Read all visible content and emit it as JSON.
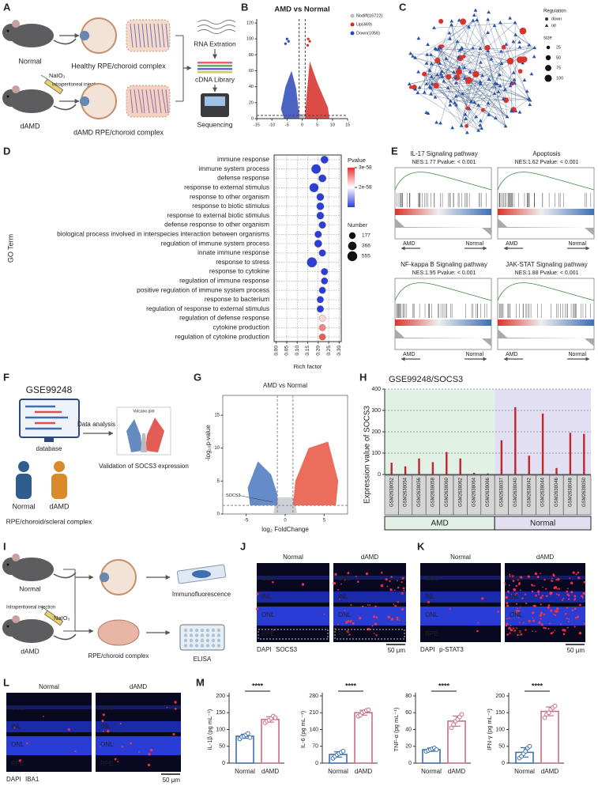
{
  "panel_labels": [
    "A",
    "B",
    "C",
    "D",
    "E",
    "F",
    "G",
    "H",
    "I",
    "J",
    "K",
    "L",
    "M"
  ],
  "panel_a": {
    "normal": "Normal",
    "healthy": "Healthy RPE/choroid complex",
    "naio3": "NaIO₃",
    "injection": "Intraperitoneal injection",
    "damd": "dAMD",
    "damd_complex": "dAMD RPE/choroid complex",
    "rna": "RNA Extration",
    "cdna": "cDNA Library",
    "seq": "Sequencing"
  },
  "panel_b": {
    "title": "AMD vs Normal",
    "legend": [
      "Nodiff(16722)",
      "Up(469)",
      "Down(1056)"
    ],
    "xlim": [
      -15,
      15
    ],
    "ylim": [
      0,
      125
    ],
    "xticks": [
      -15,
      -10,
      -5,
      0,
      5,
      10,
      15
    ],
    "yticks": [
      0,
      20,
      40,
      60,
      80,
      100,
      120
    ]
  },
  "panel_c": {
    "legend_title": "Regulation",
    "regulation": [
      "down",
      "up"
    ],
    "size_title": "size",
    "sizes": [
      25,
      50,
      75,
      100
    ]
  },
  "panel_e": {
    "plots": [
      {
        "title": "IL-17 Signaling pathway",
        "stats": "NES:1.77  Pvalue: < 0.001"
      },
      {
        "title": "Apoptosis",
        "stats": "NES:1.62  Pvalue: < 0.001"
      },
      {
        "title": "NF-kappa B Signaling pathway",
        "stats": "NES:1.95  Pvalue: < 0.001"
      },
      {
        "title": "JAK-STAT Signaling pathway",
        "stats": "NES:1.88  Pvalue: < 0.001"
      }
    ],
    "left": "AMD",
    "right": "Normal"
  },
  "panel_f": {
    "dataset": "GSE99248",
    "database": "database",
    "analysis": "Data analysis",
    "volcano": "Volcano plot",
    "normal": "Normal",
    "damd": "dAMD",
    "validation": "Validation of SOCS3 expression",
    "tissue": "RPE/choroid/scleral complex"
  },
  "panel_g": {
    "title": "AMD vs Normal",
    "xlabel": "log₂ FoldChange",
    "ylabel": "-log₁₀p-value",
    "gene": "SOCS3",
    "xlim": [
      -8,
      8
    ],
    "ylim": [
      0,
      18
    ],
    "xticks": [
      -5,
      0,
      5
    ],
    "yticks": [
      0,
      5,
      10,
      15
    ]
  },
  "panel_i": {
    "normal": "Normal",
    "injection": "Intraperitoneal injection",
    "naio3": "NaIO₃",
    "damd": "dAMD",
    "tissue": "RPE/choroid complex",
    "if": "Immunofluorescence",
    "elisa": "ELISA"
  },
  "panel_j": {
    "normal": "Normal",
    "damd": "dAMD",
    "layers": [
      "GCL",
      "INL",
      "ONL",
      "RPE"
    ],
    "dapi": "DAPI",
    "stain": "SOCS3",
    "scale": "50 μm"
  },
  "panel_k": {
    "normal": "Normal",
    "damd": "dAMD",
    "layers": [
      "GCL",
      "INL",
      "ONL",
      "RPE"
    ],
    "dapi": "DAPI",
    "stain": "p-STAT3",
    "scale": "50 μm"
  },
  "panel_l": {
    "normal": "Normal",
    "damd": "dAMD",
    "layers": [
      "GCL",
      "INL",
      "ONL",
      "RPE"
    ],
    "dapi": "DAPI",
    "stain": "IBA1",
    "scale": "50 μm"
  },
  "chart_data": [
    {
      "type": "dot",
      "ylabel": "GO Term",
      "xlabel": "Rich factor",
      "categories": [
        "immune response",
        "immune system process",
        "defense response",
        "response to external stimulus",
        "response to other organism",
        "response to biotic stimulus",
        "response to external biotic stimulus",
        "defense response to other organism",
        "biological process involved in interspecies interaction between organisms",
        "regulation of immune system process",
        "innate immune response",
        "response to stress",
        "response to cytokine",
        "regulation of immune response",
        "positive regulation of immune system process",
        "response to bacterium",
        "regulation of response to external stimulus",
        "regulation of defense response",
        "cytokine production",
        "regulation of cytokine production"
      ],
      "values": [
        0.23,
        0.19,
        0.22,
        0.18,
        0.21,
        0.21,
        0.21,
        0.22,
        0.2,
        0.2,
        0.22,
        0.17,
        0.23,
        0.23,
        0.22,
        0.21,
        0.21,
        0.22,
        0.22,
        0.22
      ],
      "sizes": [
        250,
        470,
        260,
        420,
        230,
        240,
        230,
        200,
        200,
        250,
        190,
        555,
        190,
        180,
        180,
        180,
        190,
        175,
        180,
        170
      ],
      "pvalues": [
        1e-58,
        1e-58,
        1e-58,
        1e-58,
        1e-58,
        1e-58,
        1e-58,
        1e-58,
        1e-58,
        1e-58,
        1e-58,
        1e-58,
        1e-58,
        1e-58,
        1e-58,
        1e-58,
        1e-58,
        2.2e-58,
        2.6e-58,
        2.8e-58
      ],
      "xlim": [
        -0.01,
        0.31
      ],
      "xticks": [
        {
          "value": 0,
          "label": "0.00"
        },
        {
          "value": 0.05,
          "label": "0.05"
        },
        {
          "value": 0.1,
          "label": "0.10"
        },
        {
          "value": 0.15,
          "label": "0.15"
        },
        {
          "value": 0.2,
          "label": "0.20"
        },
        {
          "value": 0.25,
          "label": "0.25"
        },
        {
          "value": 0.3,
          "label": "0.30"
        }
      ],
      "color_title": "Pvalue",
      "clim": [
        1e-58,
        3e-58
      ],
      "color_ticks": [
        {
          "value": 3e-58,
          "label": "3e-58"
        },
        {
          "value": 2e-58,
          "label": "2e-58"
        }
      ],
      "size_title": "Number",
      "size_ticks": [
        177,
        366,
        555
      ],
      "grid": true
    },
    {
      "type": "bar",
      "title": "GSE99248/SOCS3",
      "ylabel": "Expression value of SOCS3",
      "color": "#c0272d",
      "grid": true,
      "ylim": [
        0,
        400
      ],
      "yticks": [
        0,
        100,
        200,
        300,
        400
      ],
      "groups": [
        {
          "name": "AMD",
          "color": "#e2f1e5",
          "categories": [
            "GSM2638052",
            "GSM2638054",
            "GSM2638056",
            "GSM2638058",
            "GSM2638060",
            "GSM2638062",
            "GSM2638064",
            "GSM2638066"
          ],
          "values": [
            55,
            38,
            75,
            58,
            105,
            75,
            8,
            5
          ]
        },
        {
          "name": "Normal",
          "color": "#e3dff3",
          "categories": [
            "GSM2638037",
            "GSM2638040",
            "GSM2638042",
            "GSM2638044",
            "GSM2638046",
            "GSM2638048",
            "GSM2638050"
          ],
          "values": [
            160,
            315,
            88,
            285,
            30,
            195,
            190
          ]
        }
      ]
    },
    {
      "type": "bar",
      "ylabel": "IL-1β (pg mL⁻¹)",
      "categories": [
        "Normal",
        "dAMD"
      ],
      "colors": [
        "#3d6fb0",
        "#c96f87"
      ],
      "values": [
        80,
        130
      ],
      "errors": [
        6,
        8
      ],
      "points": [
        [
          72,
          78,
          80,
          84,
          88,
          76
        ],
        [
          120,
          125,
          128,
          133,
          140,
          135
        ]
      ],
      "ylim": [
        0,
        200
      ],
      "yticks": [
        0,
        50,
        100,
        150,
        200
      ],
      "significance": "****"
    },
    {
      "type": "bar",
      "ylabel": "IL-6 (pg mL⁻¹)",
      "categories": [
        "Normal",
        "dAMD"
      ],
      "colors": [
        "#3d6fb0",
        "#c96f87"
      ],
      "values": [
        36,
        210
      ],
      "errors": [
        11,
        10
      ],
      "points": [
        [
          20,
          28,
          35,
          40,
          45,
          50
        ],
        [
          195,
          200,
          210,
          215,
          220,
          222
        ]
      ],
      "ylim": [
        0,
        280
      ],
      "yticks": [
        0,
        70,
        140,
        210,
        280
      ],
      "significance": "****"
    },
    {
      "type": "bar",
      "ylabel": "TNF-α (pg mL⁻¹)",
      "categories": [
        "Normal",
        "dAMD"
      ],
      "colors": [
        "#3d6fb0",
        "#c96f87"
      ],
      "values": [
        16,
        50
      ],
      "errors": [
        2,
        6
      ],
      "points": [
        [
          14,
          15,
          16,
          17,
          18,
          16
        ],
        [
          42,
          46,
          50,
          52,
          55,
          58
        ]
      ],
      "ylim": [
        0,
        80
      ],
      "yticks": [
        0,
        20,
        40,
        60,
        80
      ],
      "significance": "****"
    },
    {
      "type": "bar",
      "ylabel": "IFN-γ (pg mL⁻¹)",
      "categories": [
        "Normal",
        "dAMD"
      ],
      "colors": [
        "#3d6fb0",
        "#c96f87"
      ],
      "values": [
        32,
        154
      ],
      "errors": [
        14,
        13
      ],
      "points": [
        [
          15,
          20,
          28,
          35,
          45,
          50
        ],
        [
          135,
          145,
          150,
          160,
          165,
          170
        ]
      ],
      "ylim": [
        0,
        200
      ],
      "yticks": [
        0,
        50,
        100,
        150,
        200
      ],
      "significance": "****"
    }
  ]
}
